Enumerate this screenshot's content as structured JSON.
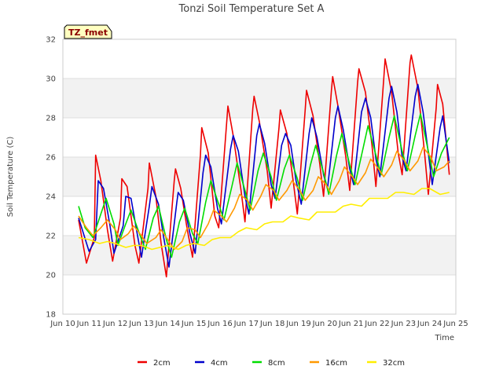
{
  "chart_data": {
    "type": "line",
    "title": "Tonzi Soil Temperature Set A",
    "xlabel": "Time",
    "ylabel": "Soil Temperature (C)",
    "badge": "TZ_fmet",
    "ylim": [
      18,
      32
    ],
    "xlim": [
      0,
      15
    ],
    "y_ticks": [
      18,
      20,
      22,
      24,
      26,
      28,
      30,
      32
    ],
    "x_ticks": [
      0,
      1,
      2,
      3,
      4,
      5,
      6,
      7,
      8,
      9,
      10,
      11,
      12,
      13,
      14,
      15
    ],
    "x_tick_labels": [
      "Jun 10",
      "Jun 11",
      "Jun 12",
      "Jun 13",
      "Jun 14",
      "Jun 15",
      "Jun 16",
      "Jun 17",
      "Jun 18",
      "Jun 19",
      "Jun 20",
      "Jun 21",
      "Jun 22",
      "Jun 23",
      "Jun 24",
      "Jun 25"
    ],
    "grid": "horizontal bands",
    "legend_position": "bottom",
    "colors": {
      "band": "#f2f2f2",
      "grid": "#dddddd",
      "axis": "#cccccc",
      "badge_bg": "#ffffc0"
    },
    "series": [
      {
        "name": "2cm",
        "color": "#ee0000",
        "x": [
          0.6,
          0.9,
          1.2,
          1.25,
          1.45,
          1.7,
          1.9,
          2.2,
          2.25,
          2.45,
          2.75,
          2.9,
          3.25,
          3.3,
          3.55,
          3.75,
          3.95,
          4.25,
          4.3,
          4.5,
          4.75,
          4.95,
          5.25,
          5.3,
          5.55,
          5.8,
          5.95,
          6.25,
          6.3,
          6.5,
          6.8,
          6.95,
          7.25,
          7.3,
          7.5,
          7.8,
          7.95,
          8.25,
          8.3,
          8.55,
          8.8,
          8.95,
          9.25,
          9.3,
          9.55,
          9.8,
          9.95,
          10.25,
          10.3,
          10.5,
          10.8,
          10.95,
          11.25,
          11.3,
          11.55,
          11.8,
          11.95,
          12.25,
          12.3,
          12.55,
          12.8,
          12.95,
          13.25,
          13.3,
          13.55,
          13.8,
          13.95,
          14.25,
          14.3,
          14.5,
          14.75
        ],
        "y": [
          22.8,
          20.6,
          21.9,
          26.1,
          24.8,
          22.3,
          20.7,
          22.9,
          24.9,
          24.5,
          21.5,
          20.6,
          24.4,
          25.7,
          24.0,
          21.6,
          19.9,
          24.8,
          25.4,
          24.4,
          22.3,
          20.9,
          26.1,
          27.5,
          26.2,
          23.0,
          22.4,
          27.7,
          28.6,
          27.1,
          24.3,
          22.7,
          28.5,
          29.1,
          27.8,
          25.3,
          23.4,
          27.5,
          28.4,
          27.2,
          24.7,
          23.1,
          28.4,
          29.4,
          28.1,
          25.7,
          24.0,
          29.4,
          30.1,
          28.6,
          26.0,
          24.3,
          29.8,
          30.5,
          29.3,
          26.6,
          24.5,
          30.0,
          31.0,
          29.3,
          26.2,
          25.1,
          30.8,
          31.2,
          29.5,
          26.3,
          24.1,
          28.5,
          29.7,
          28.7,
          25.1
        ]
      },
      {
        "name": "4cm",
        "color": "#0000cc",
        "x": [
          0.6,
          1.0,
          1.25,
          1.35,
          1.55,
          1.8,
          1.95,
          2.3,
          2.4,
          2.6,
          2.85,
          3.0,
          3.3,
          3.4,
          3.65,
          3.85,
          4.05,
          4.35,
          4.4,
          4.6,
          4.85,
          5.05,
          5.35,
          5.45,
          5.65,
          5.9,
          6.05,
          6.4,
          6.5,
          6.7,
          6.95,
          7.1,
          7.4,
          7.5,
          7.7,
          7.95,
          8.1,
          8.35,
          8.5,
          8.7,
          8.9,
          9.1,
          9.4,
          9.5,
          9.7,
          9.95,
          10.1,
          10.4,
          10.5,
          10.7,
          10.95,
          11.1,
          11.4,
          11.55,
          11.75,
          11.95,
          12.1,
          12.45,
          12.55,
          12.75,
          12.95,
          13.1,
          13.45,
          13.55,
          13.75,
          13.95,
          14.1,
          14.4,
          14.5,
          14.75
        ],
        "y": [
          22.9,
          21.2,
          21.8,
          24.8,
          24.4,
          22.5,
          21.1,
          22.5,
          24.0,
          23.9,
          22.0,
          20.9,
          23.5,
          24.5,
          23.6,
          21.9,
          20.4,
          23.7,
          24.2,
          23.8,
          22.1,
          21.1,
          25.2,
          26.1,
          25.5,
          23.4,
          22.6,
          26.4,
          27.1,
          26.3,
          24.0,
          23.1,
          27.1,
          27.7,
          26.7,
          24.6,
          23.9,
          26.6,
          27.2,
          26.6,
          24.8,
          23.6,
          27.2,
          28.0,
          27.0,
          25.1,
          24.4,
          28.0,
          28.6,
          27.4,
          25.4,
          24.6,
          28.3,
          29.0,
          28.0,
          25.9,
          25.0,
          29.0,
          29.6,
          28.3,
          26.0,
          25.3,
          29.1,
          29.7,
          28.3,
          26.2,
          24.6,
          27.5,
          28.1,
          25.7
        ]
      },
      {
        "name": "8cm",
        "color": "#00dd00",
        "x": [
          0.6,
          0.85,
          1.15,
          1.45,
          1.65,
          1.95,
          2.1,
          2.4,
          2.6,
          2.95,
          3.15,
          3.45,
          3.65,
          3.95,
          4.15,
          4.45,
          4.65,
          4.95,
          5.15,
          5.45,
          5.65,
          5.95,
          6.15,
          6.45,
          6.65,
          6.95,
          7.15,
          7.45,
          7.65,
          7.95,
          8.15,
          8.45,
          8.65,
          8.95,
          9.15,
          9.45,
          9.65,
          9.95,
          10.15,
          10.45,
          10.65,
          10.95,
          11.15,
          11.45,
          11.65,
          11.95,
          12.15,
          12.45,
          12.65,
          12.95,
          13.15,
          13.45,
          13.65,
          13.95,
          14.15,
          14.45,
          14.75
        ],
        "y": [
          23.5,
          22.4,
          21.9,
          23.1,
          23.9,
          22.6,
          21.5,
          22.6,
          23.3,
          22.0,
          21.3,
          22.9,
          23.5,
          21.8,
          20.9,
          22.7,
          23.4,
          22.1,
          21.6,
          23.7,
          24.8,
          23.6,
          22.8,
          24.5,
          25.7,
          24.3,
          23.3,
          25.3,
          26.2,
          25.0,
          23.8,
          25.4,
          26.1,
          24.9,
          23.8,
          25.6,
          26.6,
          25.2,
          24.1,
          26.1,
          27.2,
          25.6,
          24.6,
          26.4,
          27.6,
          26.1,
          25.1,
          27.0,
          28.1,
          26.3,
          25.3,
          27.1,
          28.2,
          26.3,
          25.0,
          26.2,
          27.0
        ]
      },
      {
        "name": "16cm",
        "color": "#ff9900",
        "x": [
          0.6,
          0.9,
          1.15,
          1.45,
          1.7,
          2.0,
          2.2,
          2.5,
          2.7,
          3.0,
          3.2,
          3.55,
          3.75,
          4.05,
          4.25,
          4.55,
          4.75,
          5.05,
          5.25,
          5.55,
          5.75,
          6.05,
          6.25,
          6.55,
          6.75,
          7.05,
          7.25,
          7.55,
          7.75,
          8.05,
          8.25,
          8.55,
          8.75,
          9.05,
          9.25,
          9.55,
          9.75,
          10.05,
          10.25,
          10.55,
          10.75,
          11.05,
          11.25,
          11.55,
          11.75,
          12.05,
          12.25,
          12.55,
          12.75,
          13.05,
          13.25,
          13.55,
          13.75,
          14.05,
          14.25,
          14.55,
          14.75
        ],
        "y": [
          23.0,
          22.4,
          22.0,
          22.4,
          22.8,
          22.3,
          21.8,
          22.1,
          22.5,
          22.0,
          21.6,
          21.9,
          22.3,
          21.7,
          21.3,
          21.7,
          22.4,
          22.3,
          21.9,
          22.6,
          23.3,
          23.0,
          22.7,
          23.4,
          24.1,
          23.8,
          23.3,
          24.0,
          24.6,
          24.3,
          23.8,
          24.3,
          24.8,
          24.3,
          23.8,
          24.3,
          25.0,
          24.6,
          24.1,
          24.8,
          25.5,
          25.0,
          24.6,
          25.2,
          25.9,
          25.4,
          25.0,
          25.6,
          26.3,
          25.8,
          25.3,
          25.8,
          26.5,
          26.0,
          25.3,
          25.5,
          25.8
        ]
      },
      {
        "name": "32cm",
        "color": "#ffee00",
        "x": [
          0.6,
          1.0,
          1.4,
          1.7,
          2.0,
          2.4,
          2.7,
          3.0,
          3.4,
          3.7,
          4.0,
          4.4,
          4.7,
          5.0,
          5.4,
          5.7,
          6.0,
          6.4,
          6.7,
          7.0,
          7.4,
          7.7,
          8.0,
          8.4,
          8.7,
          9.0,
          9.4,
          9.7,
          10.0,
          10.4,
          10.7,
          11.0,
          11.4,
          11.7,
          12.0,
          12.4,
          12.7,
          13.0,
          13.4,
          13.7,
          14.0,
          14.4,
          14.75
        ],
        "y": [
          21.9,
          21.8,
          21.6,
          21.7,
          21.6,
          21.4,
          21.5,
          21.5,
          21.3,
          21.4,
          21.5,
          21.3,
          21.5,
          21.6,
          21.5,
          21.8,
          21.9,
          21.9,
          22.2,
          22.4,
          22.3,
          22.6,
          22.7,
          22.7,
          23.0,
          22.9,
          22.8,
          23.2,
          23.2,
          23.2,
          23.5,
          23.6,
          23.5,
          23.9,
          23.9,
          23.9,
          24.2,
          24.2,
          24.1,
          24.4,
          24.4,
          24.1,
          24.2
        ]
      }
    ]
  }
}
